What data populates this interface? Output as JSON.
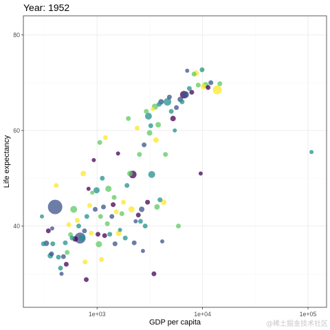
{
  "chart_data": {
    "type": "scatter",
    "title": "Year: 1952",
    "xlabel": "GDP per capita",
    "ylabel": "Life expectancy",
    "x_scale": "log10",
    "xlim": [
      200,
      150000
    ],
    "ylim": [
      23,
      84
    ],
    "x_ticks": [
      1000,
      10000,
      100000
    ],
    "x_tick_labels": [
      "1e+03",
      "1e+04",
      "1e+05"
    ],
    "y_ticks": [
      40,
      60,
      80
    ],
    "y_tick_labels": [
      "40",
      "60",
      "80"
    ],
    "grid": true,
    "legend": "none",
    "palette": [
      "#440154",
      "#3b528b",
      "#21918c",
      "#5ec962",
      "#fde725"
    ],
    "points": [
      {
        "x": 300,
        "y": 42.0,
        "s": 6,
        "c": "#21918c"
      },
      {
        "x": 310,
        "y": 36.3,
        "s": 7,
        "c": "#21918c"
      },
      {
        "x": 330,
        "y": 36.4,
        "s": 8,
        "c": "#3b528b"
      },
      {
        "x": 345,
        "y": 39.0,
        "s": 7,
        "c": "#440154"
      },
      {
        "x": 360,
        "y": 33.8,
        "s": 8,
        "c": "#21918c"
      },
      {
        "x": 370,
        "y": 34.2,
        "s": 7,
        "c": "#3b528b"
      },
      {
        "x": 375,
        "y": 39.5,
        "s": 6,
        "c": "#3b528b"
      },
      {
        "x": 380,
        "y": 36.3,
        "s": 7,
        "c": "#21918c"
      },
      {
        "x": 400,
        "y": 44.0,
        "s": 21,
        "c": "#3b528b"
      },
      {
        "x": 410,
        "y": 48.5,
        "s": 7,
        "c": "#fde725"
      },
      {
        "x": 430,
        "y": 33.5,
        "s": 7,
        "c": "#21918c"
      },
      {
        "x": 450,
        "y": 31.2,
        "s": 7,
        "c": "#21918c"
      },
      {
        "x": 460,
        "y": 30.0,
        "s": 6,
        "c": "#3b528b"
      },
      {
        "x": 480,
        "y": 33.6,
        "s": 7,
        "c": "#3b528b"
      },
      {
        "x": 500,
        "y": 36.5,
        "s": 7,
        "c": "#21918c"
      },
      {
        "x": 510,
        "y": 32.0,
        "s": 7,
        "c": "#440154"
      },
      {
        "x": 520,
        "y": 34.5,
        "s": 7,
        "c": "#5ec962"
      },
      {
        "x": 540,
        "y": 40.3,
        "s": 7,
        "c": "#fde725"
      },
      {
        "x": 560,
        "y": 38.2,
        "s": 7,
        "c": "#5ec962"
      },
      {
        "x": 580,
        "y": 37.5,
        "s": 7,
        "c": "#21918c"
      },
      {
        "x": 600,
        "y": 43.5,
        "s": 10,
        "c": "#5ec962"
      },
      {
        "x": 620,
        "y": 37.3,
        "s": 8,
        "c": "#440154"
      },
      {
        "x": 650,
        "y": 41.2,
        "s": 7,
        "c": "#fde725"
      },
      {
        "x": 670,
        "y": 40.0,
        "s": 7,
        "c": "#21918c"
      },
      {
        "x": 690,
        "y": 37.5,
        "s": 16,
        "c": "#3b528b"
      },
      {
        "x": 720,
        "y": 37.5,
        "s": 9,
        "c": "#21918c"
      },
      {
        "x": 740,
        "y": 51.0,
        "s": 8,
        "c": "#fde725"
      },
      {
        "x": 760,
        "y": 39.0,
        "s": 7,
        "c": "#3b528b"
      },
      {
        "x": 770,
        "y": 32.5,
        "s": 7,
        "c": "#fde725"
      },
      {
        "x": 790,
        "y": 28.8,
        "s": 7,
        "c": "#440154"
      },
      {
        "x": 800,
        "y": 42.0,
        "s": 7,
        "c": "#21918c"
      },
      {
        "x": 830,
        "y": 47.8,
        "s": 6,
        "c": "#440154"
      },
      {
        "x": 850,
        "y": 44.3,
        "s": 7,
        "c": "#fde725"
      },
      {
        "x": 880,
        "y": 38.5,
        "s": 7,
        "c": "#fde725"
      },
      {
        "x": 900,
        "y": 47.0,
        "s": 6,
        "c": "#5ec962"
      },
      {
        "x": 930,
        "y": 53.8,
        "s": 6,
        "c": "#440154"
      },
      {
        "x": 960,
        "y": 43.5,
        "s": 7,
        "c": "#3b528b"
      },
      {
        "x": 990,
        "y": 47.5,
        "s": 9,
        "c": "#21918c"
      },
      {
        "x": 1020,
        "y": 38.3,
        "s": 7,
        "c": "#440154"
      },
      {
        "x": 1040,
        "y": 36.2,
        "s": 9,
        "c": "#5ec962"
      },
      {
        "x": 1060,
        "y": 57.5,
        "s": 7,
        "c": "#5ec962"
      },
      {
        "x": 1080,
        "y": 42.0,
        "s": 7,
        "c": "#5ec962"
      },
      {
        "x": 1100,
        "y": 33.0,
        "s": 7,
        "c": "#fde725"
      },
      {
        "x": 1120,
        "y": 50.0,
        "s": 7,
        "c": "#21918c"
      },
      {
        "x": 1150,
        "y": 44.0,
        "s": 7,
        "c": "#3b528b"
      },
      {
        "x": 1180,
        "y": 38.0,
        "s": 7,
        "c": "#440154"
      },
      {
        "x": 1200,
        "y": 58.5,
        "s": 7,
        "c": "#fde725"
      },
      {
        "x": 1250,
        "y": 40.5,
        "s": 7,
        "c": "#5ec962"
      },
      {
        "x": 1280,
        "y": 47.8,
        "s": 9,
        "c": "#5ec962"
      },
      {
        "x": 1320,
        "y": 38.3,
        "s": 7,
        "c": "#21918c"
      },
      {
        "x": 1380,
        "y": 42.0,
        "s": 7,
        "c": "#3b528b"
      },
      {
        "x": 1420,
        "y": 44.5,
        "s": 7,
        "c": "#440154"
      },
      {
        "x": 1450,
        "y": 46.0,
        "s": 7,
        "c": "#5ec962"
      },
      {
        "x": 1480,
        "y": 36.3,
        "s": 7,
        "c": "#3b528b"
      },
      {
        "x": 1520,
        "y": 43.0,
        "s": 7,
        "c": "#fde725"
      },
      {
        "x": 1580,
        "y": 55.2,
        "s": 6,
        "c": "#440154"
      },
      {
        "x": 1600,
        "y": 38.5,
        "s": 8,
        "c": "#fde725"
      },
      {
        "x": 1650,
        "y": 39.2,
        "s": 6,
        "c": "#21918c"
      },
      {
        "x": 1720,
        "y": 42.6,
        "s": 7,
        "c": "#5ec962"
      },
      {
        "x": 1780,
        "y": 45.0,
        "s": 7,
        "c": "#fde725"
      },
      {
        "x": 1850,
        "y": 37.5,
        "s": 7,
        "c": "#21918c"
      },
      {
        "x": 1920,
        "y": 48.5,
        "s": 7,
        "c": "#21918c"
      },
      {
        "x": 1980,
        "y": 62.5,
        "s": 7,
        "c": "#5ec962"
      },
      {
        "x": 2050,
        "y": 51.0,
        "s": 8,
        "c": "#5ec962"
      },
      {
        "x": 2120,
        "y": 43.5,
        "s": 9,
        "c": "#fde725"
      },
      {
        "x": 2180,
        "y": 50.8,
        "s": 11,
        "c": "#440154"
      },
      {
        "x": 2250,
        "y": 36.5,
        "s": 7,
        "c": "#3b528b"
      },
      {
        "x": 2320,
        "y": 41.0,
        "s": 6,
        "c": "#3b528b"
      },
      {
        "x": 2400,
        "y": 60.5,
        "s": 7,
        "c": "#fde725"
      },
      {
        "x": 2460,
        "y": 42.3,
        "s": 7,
        "c": "#440154"
      },
      {
        "x": 2520,
        "y": 55.0,
        "s": 7,
        "c": "#5ec962"
      },
      {
        "x": 2580,
        "y": 41.0,
        "s": 7,
        "c": "#21918c"
      },
      {
        "x": 2650,
        "y": 43.5,
        "s": 8,
        "c": "#3b528b"
      },
      {
        "x": 2720,
        "y": 34.8,
        "s": 6,
        "c": "#3b528b"
      },
      {
        "x": 2790,
        "y": 57.0,
        "s": 7,
        "c": "#3b528b"
      },
      {
        "x": 2860,
        "y": 40.0,
        "s": 7,
        "c": "#21918c"
      },
      {
        "x": 2930,
        "y": 64.0,
        "s": 7,
        "c": "#5ec962"
      },
      {
        "x": 3010,
        "y": 45.0,
        "s": 7,
        "c": "#440154"
      },
      {
        "x": 3070,
        "y": 63.0,
        "s": 10,
        "c": "#21918c"
      },
      {
        "x": 3150,
        "y": 59.5,
        "s": 8,
        "c": "#5ec962"
      },
      {
        "x": 3230,
        "y": 61.0,
        "s": 7,
        "c": "#21918c"
      },
      {
        "x": 3300,
        "y": 50.8,
        "s": 10,
        "c": "#21918c"
      },
      {
        "x": 3380,
        "y": 64.5,
        "s": 6,
        "c": "#fde725"
      },
      {
        "x": 3460,
        "y": 30.0,
        "s": 7,
        "c": "#440154"
      },
      {
        "x": 3540,
        "y": 65.0,
        "s": 9,
        "c": "#5ec962"
      },
      {
        "x": 3620,
        "y": 58.0,
        "s": 8,
        "c": "#fde725"
      },
      {
        "x": 3700,
        "y": 44.0,
        "s": 8,
        "c": "#5ec962"
      },
      {
        "x": 3800,
        "y": 61.2,
        "s": 8,
        "c": "#5ec962"
      },
      {
        "x": 3880,
        "y": 65.5,
        "s": 7,
        "c": "#21918c"
      },
      {
        "x": 3950,
        "y": 45.5,
        "s": 7,
        "c": "#21918c"
      },
      {
        "x": 4050,
        "y": 66.0,
        "s": 8,
        "c": "#3b528b"
      },
      {
        "x": 4150,
        "y": 36.8,
        "s": 6,
        "c": "#3b528b"
      },
      {
        "x": 4280,
        "y": 45.0,
        "s": 8,
        "c": "#fde725"
      },
      {
        "x": 4450,
        "y": 55.0,
        "s": 7,
        "c": "#5ec962"
      },
      {
        "x": 4650,
        "y": 66.0,
        "s": 11,
        "c": "#21918c"
      },
      {
        "x": 4850,
        "y": 67.0,
        "s": 7,
        "c": "#3b528b"
      },
      {
        "x": 5050,
        "y": 64.0,
        "s": 7,
        "c": "#21918c"
      },
      {
        "x": 5250,
        "y": 62.5,
        "s": 8,
        "c": "#440154"
      },
      {
        "x": 5450,
        "y": 60.0,
        "s": 6,
        "c": "#21918c"
      },
      {
        "x": 5650,
        "y": 64.8,
        "s": 7,
        "c": "#3b528b"
      },
      {
        "x": 5900,
        "y": 40.0,
        "s": 7,
        "c": "#5ec962"
      },
      {
        "x": 6150,
        "y": 66.5,
        "s": 8,
        "c": "#3b528b"
      },
      {
        "x": 6400,
        "y": 66.0,
        "s": 7,
        "c": "#21918c"
      },
      {
        "x": 6650,
        "y": 67.5,
        "s": 11,
        "c": "#440154"
      },
      {
        "x": 6900,
        "y": 67.5,
        "s": 10,
        "c": "#3b528b"
      },
      {
        "x": 7150,
        "y": 72.5,
        "s": 6,
        "c": "#3b528b"
      },
      {
        "x": 7500,
        "y": 68.8,
        "s": 7,
        "c": "#21918c"
      },
      {
        "x": 7900,
        "y": 68.0,
        "s": 7,
        "c": "#440154"
      },
      {
        "x": 8300,
        "y": 71.8,
        "s": 7,
        "c": "#5ec962"
      },
      {
        "x": 8700,
        "y": 72.0,
        "s": 8,
        "c": "#fde725"
      },
      {
        "x": 9100,
        "y": 69.5,
        "s": 7,
        "c": "#5ec962"
      },
      {
        "x": 9600,
        "y": 51.0,
        "s": 6,
        "c": "#440154"
      },
      {
        "x": 9900,
        "y": 72.7,
        "s": 7,
        "c": "#21918c"
      },
      {
        "x": 10200,
        "y": 69.2,
        "s": 8,
        "c": "#fde725"
      },
      {
        "x": 10700,
        "y": 69.5,
        "s": 9,
        "c": "#5ec962"
      },
      {
        "x": 11300,
        "y": 69.0,
        "s": 7,
        "c": "#440154"
      },
      {
        "x": 12000,
        "y": 70.0,
        "s": 7,
        "c": "#3b528b"
      },
      {
        "x": 13800,
        "y": 68.5,
        "s": 13,
        "c": "#fde725"
      },
      {
        "x": 14600,
        "y": 69.8,
        "s": 7,
        "c": "#5ec962"
      },
      {
        "x": 108000,
        "y": 55.5,
        "s": 6,
        "c": "#21918c"
      }
    ]
  },
  "watermark": "@稀土掘金技术社区"
}
